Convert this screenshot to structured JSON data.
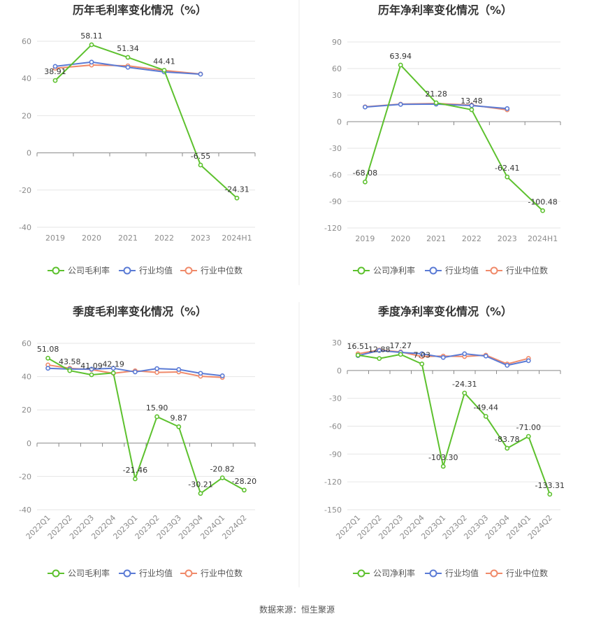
{
  "source_label": "数据来源：恒生聚源",
  "legend_colors": {
    "company": "#5dc12e",
    "avg": "#5b7bd5",
    "median": "#f08a6a"
  },
  "chart_data": [
    {
      "type": "line",
      "title": "历年毛利率变化情况（%）",
      "categories": [
        "2019",
        "2020",
        "2021",
        "2022",
        "2023",
        "2024H1"
      ],
      "ylim": [
        -40,
        60
      ],
      "yticks": [
        60,
        40,
        20,
        0,
        -20,
        -40
      ],
      "grid": true,
      "legend_position": "bottom",
      "series": [
        {
          "name": "公司毛利率",
          "values": [
            38.91,
            58.11,
            51.34,
            44.41,
            -6.55,
            -24.31
          ],
          "labels": [
            "38.91",
            "58.11",
            "51.34",
            "44.41",
            "-6.55",
            "-24.31"
          ]
        },
        {
          "name": "行业均值",
          "values": [
            46.5,
            48.8,
            46.0,
            43.5,
            42.3,
            null
          ]
        },
        {
          "name": "行业中位数",
          "values": [
            45.5,
            47.2,
            46.8,
            44.3,
            42.4,
            null
          ]
        }
      ]
    },
    {
      "type": "line",
      "title": "历年净利率变化情况（%）",
      "categories": [
        "2019",
        "2020",
        "2021",
        "2022",
        "2023",
        "2024H1"
      ],
      "ylim": [
        -120,
        90
      ],
      "yticks": [
        90,
        60,
        30,
        0,
        -30,
        -60,
        -90,
        -120
      ],
      "grid": true,
      "legend_position": "bottom",
      "series": [
        {
          "name": "公司净利率",
          "values": [
            -68.08,
            63.94,
            21.28,
            13.48,
            -62.41,
            -100.48
          ],
          "labels": [
            "-68.08",
            "63.94",
            "21.28",
            "13.48",
            "-62.41",
            "-100.48"
          ]
        },
        {
          "name": "行业均值",
          "values": [
            16.5,
            19.5,
            19.8,
            18.2,
            14.8,
            null
          ]
        },
        {
          "name": "行业中位数",
          "values": [
            16.8,
            19.8,
            20.5,
            18.8,
            13.3,
            null
          ]
        }
      ]
    },
    {
      "type": "line",
      "title": "季度毛利率变化情况（%）",
      "categories": [
        "2022Q1",
        "2022Q2",
        "2022Q3",
        "2022Q4",
        "2023Q1",
        "2023Q2",
        "2023Q3",
        "2023Q4",
        "2024Q1",
        "2024Q2"
      ],
      "ylim": [
        -40,
        60
      ],
      "yticks": [
        60,
        40,
        20,
        0,
        -20,
        -40
      ],
      "grid": true,
      "legend_position": "bottom",
      "series": [
        {
          "name": "公司毛利率",
          "values": [
            51.08,
            43.58,
            41.09,
            42.19,
            -21.46,
            15.9,
            9.87,
            -30.21,
            -20.82,
            -28.2
          ],
          "labels": [
            "51.08",
            "43.58",
            "41.09",
            "42.19",
            "-21.46",
            "15.90",
            "9.87",
            "-30.21",
            "-20.82",
            "-28.20"
          ]
        },
        {
          "name": "行业均值",
          "values": [
            45.0,
            44.5,
            44.5,
            45.0,
            42.8,
            44.8,
            44.3,
            42.0,
            40.5,
            null
          ]
        },
        {
          "name": "行业中位数",
          "values": [
            47.0,
            45.0,
            44.2,
            42.0,
            43.5,
            42.5,
            42.8,
            40.2,
            39.5,
            null
          ]
        }
      ]
    },
    {
      "type": "line",
      "title": "季度净利率变化情况（%）",
      "categories": [
        "2022Q1",
        "2022Q2",
        "2022Q3",
        "2022Q4",
        "2023Q1",
        "2023Q2",
        "2023Q3",
        "2023Q4",
        "2024Q1",
        "2024Q2"
      ],
      "ylim": [
        -150,
        30
      ],
      "yticks": [
        30,
        0,
        -30,
        -60,
        -90,
        -120,
        -150
      ],
      "grid": true,
      "legend_position": "bottom",
      "series": [
        {
          "name": "公司净利率",
          "values": [
            16.51,
            12.88,
            17.27,
            7.03,
            -103.3,
            -24.31,
            -49.44,
            -83.78,
            -71.0,
            -133.31
          ],
          "labels": [
            "16.51",
            "12.88",
            "17.27",
            "7.03",
            "-103.30",
            "-24.31",
            "-49.44",
            "-83.78",
            "-71.00",
            "-133.31"
          ]
        },
        {
          "name": "行业均值",
          "values": [
            16.0,
            21.5,
            19.5,
            18.0,
            14.0,
            18.0,
            15.5,
            5.5,
            10.5,
            null
          ]
        },
        {
          "name": "行业中位数",
          "values": [
            18.0,
            22.0,
            20.0,
            15.0,
            15.5,
            15.0,
            16.5,
            7.0,
            13.0,
            null
          ]
        }
      ]
    }
  ]
}
